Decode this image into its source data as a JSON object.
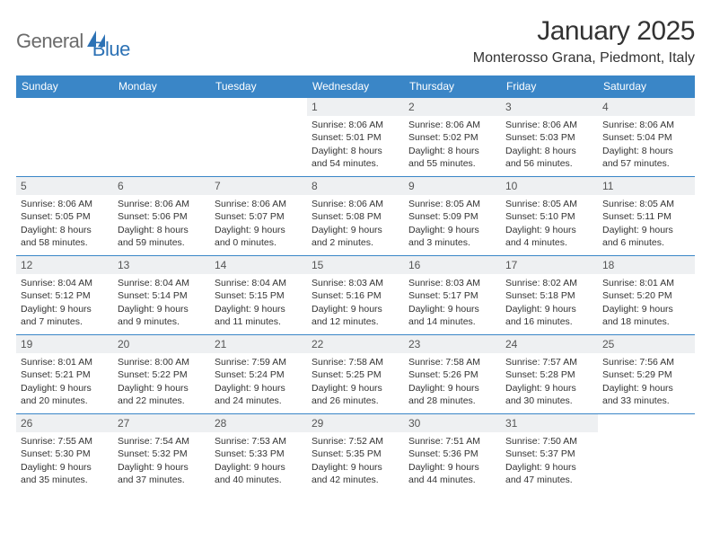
{
  "logo": {
    "text1": "General",
    "text2": "Blue"
  },
  "title": "January 2025",
  "location": "Monterosso Grana, Piedmont, Italy",
  "colors": {
    "header_bg": "#3a86c7",
    "header_fg": "#ffffff",
    "daynum_bg": "#eef0f2",
    "border": "#3a86c7",
    "logo_gray": "#6b6b6b",
    "logo_blue": "#2d72b5"
  },
  "dow": [
    "Sunday",
    "Monday",
    "Tuesday",
    "Wednesday",
    "Thursday",
    "Friday",
    "Saturday"
  ],
  "layout": {
    "columns": 7,
    "rows": 5,
    "start_day_index": 3,
    "num_days": 31
  },
  "days": [
    {
      "n": 1,
      "rise": "8:06 AM",
      "set": "5:01 PM",
      "dh": 8,
      "dm": 54
    },
    {
      "n": 2,
      "rise": "8:06 AM",
      "set": "5:02 PM",
      "dh": 8,
      "dm": 55
    },
    {
      "n": 3,
      "rise": "8:06 AM",
      "set": "5:03 PM",
      "dh": 8,
      "dm": 56
    },
    {
      "n": 4,
      "rise": "8:06 AM",
      "set": "5:04 PM",
      "dh": 8,
      "dm": 57
    },
    {
      "n": 5,
      "rise": "8:06 AM",
      "set": "5:05 PM",
      "dh": 8,
      "dm": 58
    },
    {
      "n": 6,
      "rise": "8:06 AM",
      "set": "5:06 PM",
      "dh": 8,
      "dm": 59
    },
    {
      "n": 7,
      "rise": "8:06 AM",
      "set": "5:07 PM",
      "dh": 9,
      "dm": 0
    },
    {
      "n": 8,
      "rise": "8:06 AM",
      "set": "5:08 PM",
      "dh": 9,
      "dm": 2
    },
    {
      "n": 9,
      "rise": "8:05 AM",
      "set": "5:09 PM",
      "dh": 9,
      "dm": 3
    },
    {
      "n": 10,
      "rise": "8:05 AM",
      "set": "5:10 PM",
      "dh": 9,
      "dm": 4
    },
    {
      "n": 11,
      "rise": "8:05 AM",
      "set": "5:11 PM",
      "dh": 9,
      "dm": 6
    },
    {
      "n": 12,
      "rise": "8:04 AM",
      "set": "5:12 PM",
      "dh": 9,
      "dm": 7
    },
    {
      "n": 13,
      "rise": "8:04 AM",
      "set": "5:14 PM",
      "dh": 9,
      "dm": 9
    },
    {
      "n": 14,
      "rise": "8:04 AM",
      "set": "5:15 PM",
      "dh": 9,
      "dm": 11
    },
    {
      "n": 15,
      "rise": "8:03 AM",
      "set": "5:16 PM",
      "dh": 9,
      "dm": 12
    },
    {
      "n": 16,
      "rise": "8:03 AM",
      "set": "5:17 PM",
      "dh": 9,
      "dm": 14
    },
    {
      "n": 17,
      "rise": "8:02 AM",
      "set": "5:18 PM",
      "dh": 9,
      "dm": 16
    },
    {
      "n": 18,
      "rise": "8:01 AM",
      "set": "5:20 PM",
      "dh": 9,
      "dm": 18
    },
    {
      "n": 19,
      "rise": "8:01 AM",
      "set": "5:21 PM",
      "dh": 9,
      "dm": 20
    },
    {
      "n": 20,
      "rise": "8:00 AM",
      "set": "5:22 PM",
      "dh": 9,
      "dm": 22
    },
    {
      "n": 21,
      "rise": "7:59 AM",
      "set": "5:24 PM",
      "dh": 9,
      "dm": 24
    },
    {
      "n": 22,
      "rise": "7:58 AM",
      "set": "5:25 PM",
      "dh": 9,
      "dm": 26
    },
    {
      "n": 23,
      "rise": "7:58 AM",
      "set": "5:26 PM",
      "dh": 9,
      "dm": 28
    },
    {
      "n": 24,
      "rise": "7:57 AM",
      "set": "5:28 PM",
      "dh": 9,
      "dm": 30
    },
    {
      "n": 25,
      "rise": "7:56 AM",
      "set": "5:29 PM",
      "dh": 9,
      "dm": 33
    },
    {
      "n": 26,
      "rise": "7:55 AM",
      "set": "5:30 PM",
      "dh": 9,
      "dm": 35
    },
    {
      "n": 27,
      "rise": "7:54 AM",
      "set": "5:32 PM",
      "dh": 9,
      "dm": 37
    },
    {
      "n": 28,
      "rise": "7:53 AM",
      "set": "5:33 PM",
      "dh": 9,
      "dm": 40
    },
    {
      "n": 29,
      "rise": "7:52 AM",
      "set": "5:35 PM",
      "dh": 9,
      "dm": 42
    },
    {
      "n": 30,
      "rise": "7:51 AM",
      "set": "5:36 PM",
      "dh": 9,
      "dm": 44
    },
    {
      "n": 31,
      "rise": "7:50 AM",
      "set": "5:37 PM",
      "dh": 9,
      "dm": 47
    }
  ],
  "labels": {
    "sunrise": "Sunrise:",
    "sunset": "Sunset:",
    "daylight": "Daylight:",
    "hours": "hours",
    "and": "and",
    "minutes": "minutes."
  }
}
